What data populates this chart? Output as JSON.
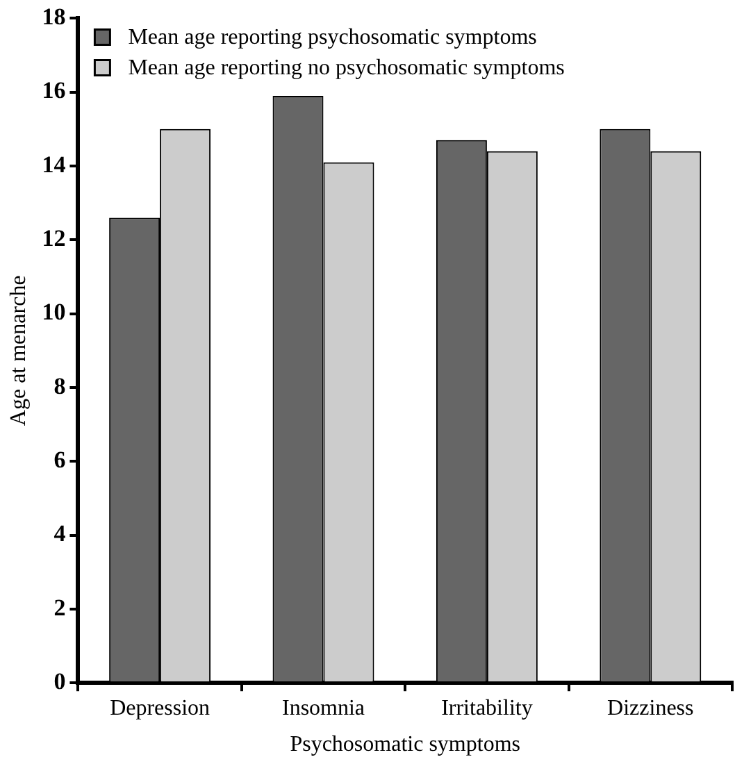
{
  "chart_data": {
    "type": "bar",
    "xlabel": "Psychosomatic symptoms",
    "ylabel": "Age at menarche",
    "categories": [
      "Depression",
      "Insomnia",
      "Irritability",
      "Dizziness"
    ],
    "series": [
      {
        "name": "Mean age reporting psychosomatic symptoms",
        "color": "#666666",
        "values": [
          12.6,
          15.9,
          14.7,
          15.0
        ]
      },
      {
        "name": "Mean age reporting no psychosomatic symptoms",
        "color": "#cccccc",
        "values": [
          15.0,
          14.1,
          14.4,
          14.4
        ]
      }
    ],
    "ylim": [
      0,
      18
    ],
    "yticks": [
      0,
      2,
      4,
      6,
      8,
      10,
      12,
      14,
      16,
      18
    ],
    "grid": false,
    "legend": "top left"
  }
}
